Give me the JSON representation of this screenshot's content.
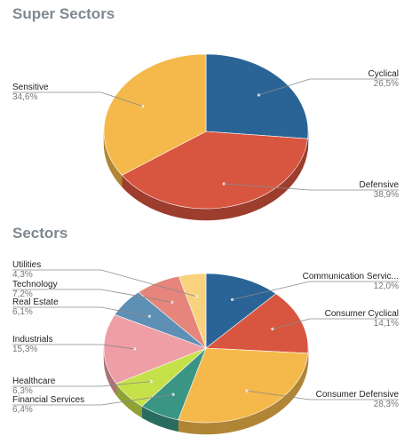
{
  "sections": [
    {
      "title": "Super Sectors"
    },
    {
      "title": "Sectors"
    }
  ],
  "chart_data": [
    {
      "type": "pie",
      "title": "Super Sectors",
      "slices": [
        {
          "label": "Cyclical",
          "value": 26.5,
          "value_text": "26,5%",
          "color": "#2a6496"
        },
        {
          "label": "Defensive",
          "value": 38.9,
          "value_text": "38,9%",
          "color": "#d85540"
        },
        {
          "label": "Sensitive",
          "value": 34.6,
          "value_text": "34,6%",
          "color": "#f4b94a"
        }
      ]
    },
    {
      "type": "pie",
      "title": "Sectors",
      "slices": [
        {
          "label": "Communication Servic...",
          "value": 12.0,
          "value_text": "12,0%",
          "color": "#2a6496"
        },
        {
          "label": "Consumer Cyclical",
          "value": 14.1,
          "value_text": "14,1%",
          "color": "#d85540"
        },
        {
          "label": "Consumer Defensive",
          "value": 28.3,
          "value_text": "28,3%",
          "color": "#f4b94a"
        },
        {
          "label": "Financial Services",
          "value": 6.4,
          "value_text": "6,4%",
          "color": "#3b9585"
        },
        {
          "label": "Healthcare",
          "value": 6.3,
          "value_text": "6,3%",
          "color": "#c6e04a"
        },
        {
          "label": "Industrials",
          "value": 15.3,
          "value_text": "15,3%",
          "color": "#ee9ea4"
        },
        {
          "label": "Real Estate",
          "value": 6.1,
          "value_text": "6,1%",
          "color": "#5e8fb5"
        },
        {
          "label": "Technology",
          "value": 7.2,
          "value_text": "7,2%",
          "color": "#e5857b"
        },
        {
          "label": "Utilities",
          "value": 4.3,
          "value_text": "4,3%",
          "color": "#f8d27e"
        }
      ]
    }
  ]
}
